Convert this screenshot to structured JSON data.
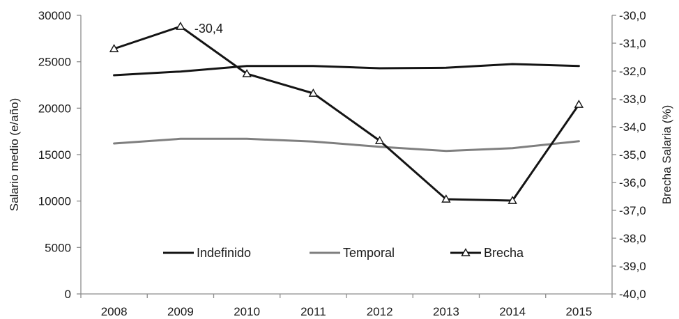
{
  "chart_data": {
    "type": "line",
    "categories": [
      "2008",
      "2009",
      "2010",
      "2011",
      "2012",
      "2013",
      "2014",
      "2015"
    ],
    "series": [
      {
        "name": "Indefinido",
        "axis": "left",
        "color": "#141414",
        "marker": "none",
        "values": [
          23550,
          23950,
          24550,
          24550,
          24300,
          24350,
          24750,
          24550
        ]
      },
      {
        "name": "Temporal",
        "axis": "left",
        "color": "#7f7f7f",
        "marker": "none",
        "values": [
          16200,
          16700,
          16700,
          16400,
          15850,
          15400,
          15700,
          16450
        ]
      },
      {
        "name": "Brecha",
        "axis": "right",
        "color": "#141414",
        "marker": "triangle-open",
        "values": [
          -31.2,
          -30.4,
          -32.1,
          -32.8,
          -34.5,
          -36.6,
          -36.65,
          -33.2
        ]
      }
    ],
    "y_left": {
      "label": "Salario medio (e/año)",
      "ylim": [
        0,
        30000
      ],
      "ticks": [
        "0",
        "5000",
        "10000",
        "15000",
        "20000",
        "25000",
        "30000"
      ]
    },
    "y_right": {
      "label": "Brecha Salaria (%)",
      "ylim": [
        -40,
        -30
      ],
      "ticks": [
        "-30,0",
        "-31,0",
        "-32,0",
        "-33,0",
        "-34,0",
        "-35,0",
        "-36,0",
        "-37,0",
        "-38,0",
        "-39,0",
        "-40,0"
      ]
    },
    "annotations": [
      {
        "series": "Brecha",
        "category": "2009",
        "text": "-30,4"
      }
    ],
    "legend": {
      "position": "bottom-inside"
    },
    "grid": false,
    "title": "",
    "xlabel": ""
  }
}
